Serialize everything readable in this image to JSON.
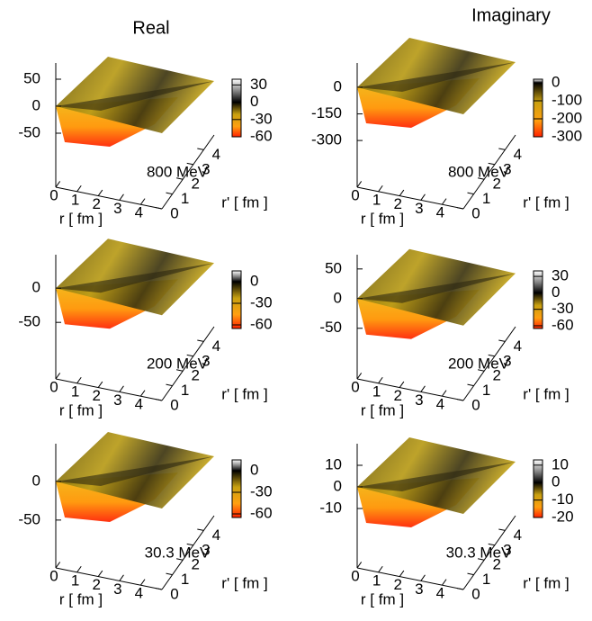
{
  "column_titles": {
    "real": "Real",
    "imaginary": "Imaginary"
  },
  "panels": [
    {
      "energy": "800 MeV",
      "xlabel": "r [ fm ]",
      "ylabel": "r' [ fm ]",
      "xlim": [
        0,
        5
      ],
      "xticks": [
        0,
        1,
        2,
        3,
        4
      ],
      "ylim": [
        0,
        5
      ],
      "yticks": [
        0,
        1,
        2,
        3,
        4
      ],
      "zlim": [
        -120,
        80
      ],
      "zticks": [
        -50,
        0,
        50
      ],
      "cblim": [
        -60,
        40
      ],
      "cbticks": [
        -60,
        -30,
        0,
        30
      ]
    },
    {
      "energy": "800 MeV",
      "xlabel": "r [ fm ]",
      "ylabel": "r' [ fm ]",
      "xlim": [
        0,
        5
      ],
      "xticks": [
        0,
        1,
        2,
        3,
        4
      ],
      "ylim": [
        0,
        5
      ],
      "yticks": [
        0,
        1,
        2,
        3,
        4
      ],
      "zlim": [
        -472,
        137
      ],
      "zticks": [
        -300,
        -150,
        0
      ],
      "cblim": [
        -300,
        20
      ],
      "cbticks": [
        -300,
        -200,
        -100,
        0
      ]
    },
    {
      "energy": "200 MeV",
      "xlabel": "r [ fm ]",
      "ylabel": "r' [ fm ]",
      "xlim": [
        0,
        5
      ],
      "xticks": [
        0,
        1,
        2,
        3,
        4
      ],
      "ylim": [
        0,
        5
      ],
      "yticks": [
        0,
        1,
        2,
        3,
        4
      ],
      "zlim": [
        -109,
        49
      ],
      "zticks": [
        -50,
        0
      ],
      "cblim": [
        -65,
        15
      ],
      "cbticks": [
        -60,
        -30,
        0
      ]
    },
    {
      "energy": "200 MeV",
      "xlabel": "r [ fm ]",
      "ylabel": "r' [ fm ]",
      "xlim": [
        0,
        5
      ],
      "xticks": [
        0,
        1,
        2,
        3,
        4
      ],
      "ylim": [
        0,
        5
      ],
      "yticks": [
        0,
        1,
        2,
        3,
        4
      ],
      "zlim": [
        -108,
        74
      ],
      "zticks": [
        -50,
        0,
        50
      ],
      "cblim": [
        -65,
        40
      ],
      "cbticks": [
        -60,
        -30,
        0,
        30
      ]
    },
    {
      "energy": "30.3 MeV",
      "xlabel": "r [ fm ]",
      "ylabel": "r' [ fm ]",
      "xlim": [
        0,
        5
      ],
      "xticks": [
        0,
        1,
        2,
        3,
        4
      ],
      "ylim": [
        0,
        5
      ],
      "yticks": [
        0,
        1,
        2,
        3,
        4
      ],
      "zlim": [
        -91,
        49
      ],
      "zticks": [
        -50,
        0
      ],
      "cblim": [
        -65,
        15
      ],
      "cbticks": [
        -60,
        -30,
        0
      ]
    },
    {
      "energy": "30.3 MeV",
      "xlabel": "r [ fm ]",
      "ylabel": "r' [ fm ]",
      "xlim": [
        0,
        5
      ],
      "xticks": [
        0,
        1,
        2,
        3,
        4
      ],
      "ylim": [
        0,
        5
      ],
      "yticks": [
        0,
        1,
        2,
        3,
        4
      ],
      "zlim": [
        -30,
        20
      ],
      "zticks": [
        -10,
        0,
        10
      ],
      "cblim": [
        -20,
        13
      ],
      "cbticks": [
        -20,
        -10,
        0,
        10
      ]
    }
  ]
}
